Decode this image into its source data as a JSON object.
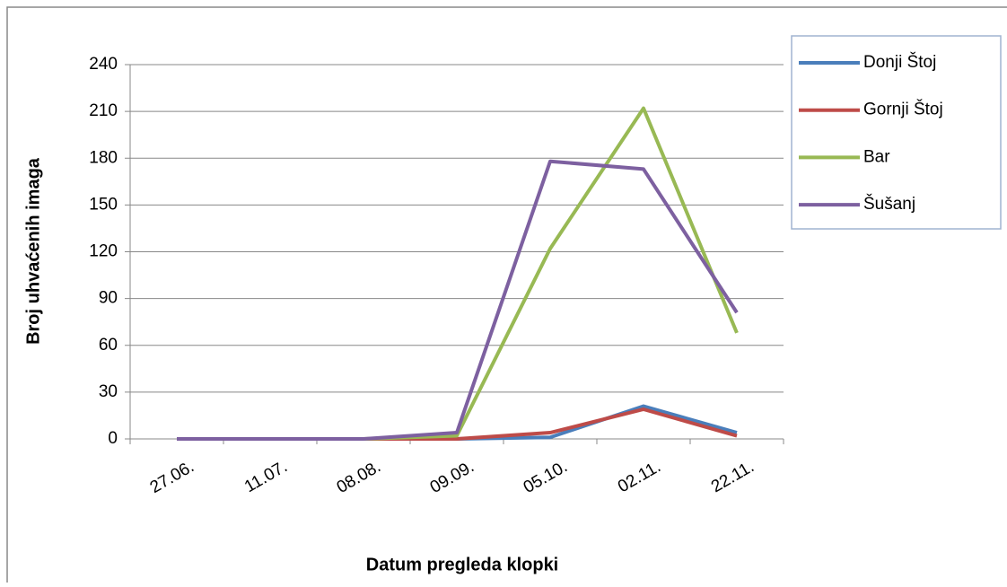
{
  "chart_data": {
    "type": "line",
    "x_label": "Datum pregleda klopki",
    "y_label": "Broj uhvaćenih imaga",
    "categories": [
      "27.06.",
      "11.07.",
      "08.08.",
      "09.09.",
      "05.10.",
      "02.11.",
      "22.11."
    ],
    "series": [
      {
        "name": "Donji Štoj",
        "color": "#4a7ebb",
        "values": [
          0,
          0,
          0,
          0,
          1,
          21,
          4
        ]
      },
      {
        "name": "Gornji Štoj",
        "color": "#be4b48",
        "values": [
          0,
          0,
          0,
          0,
          4,
          19,
          2
        ]
      },
      {
        "name": "Bar",
        "color": "#98b954",
        "values": [
          0,
          0,
          0,
          2,
          122,
          212,
          68
        ]
      },
      {
        "name": "Šušanj",
        "color": "#7d60a0",
        "values": [
          0,
          0,
          0,
          4,
          178,
          173,
          81
        ]
      }
    ],
    "ylim": [
      0,
      240
    ],
    "yticks": [
      0,
      30,
      60,
      90,
      120,
      150,
      180,
      210,
      240
    ],
    "grid": true,
    "legend": "right"
  }
}
